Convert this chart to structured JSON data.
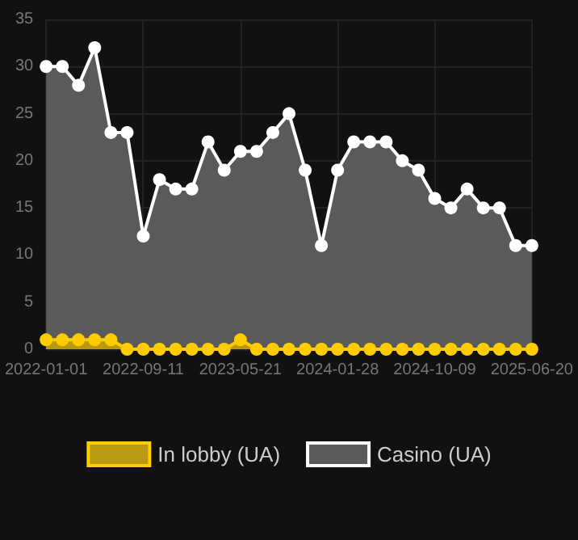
{
  "chart_data": {
    "type": "area",
    "categories": [
      "2022-01-01",
      null,
      null,
      null,
      null,
      null,
      "2022-09-11",
      null,
      null,
      null,
      null,
      null,
      "2023-05-21",
      null,
      null,
      null,
      null,
      null,
      "2024-01-28",
      null,
      null,
      null,
      null,
      null,
      "2024-10-09",
      null,
      null,
      null,
      null,
      null,
      "2025-06-20"
    ],
    "series": [
      {
        "name": "In lobby (UA)",
        "color": "#ffcc00",
        "values": [
          1,
          1,
          1,
          1,
          1,
          0,
          0,
          0,
          0,
          0,
          0,
          0,
          1,
          0,
          0,
          0,
          0,
          0,
          0,
          0,
          0,
          0,
          0,
          0,
          0,
          0,
          0,
          0,
          0,
          0,
          0
        ]
      },
      {
        "name": "Casino (UA)",
        "color": "#ffffff",
        "values": [
          30,
          30,
          28,
          32,
          23,
          23,
          12,
          18,
          17,
          17,
          22,
          19,
          21,
          21,
          23,
          25,
          19,
          11,
          19,
          22,
          22,
          22,
          20,
          19,
          16,
          15,
          17,
          15,
          15,
          11,
          11
        ]
      }
    ],
    "ylim": [
      0,
      35
    ],
    "yticks": [
      0,
      5,
      10,
      15,
      20,
      25,
      30,
      35
    ],
    "grid": true,
    "legend": "bottom",
    "marker": "circle",
    "line_style": "solid"
  }
}
